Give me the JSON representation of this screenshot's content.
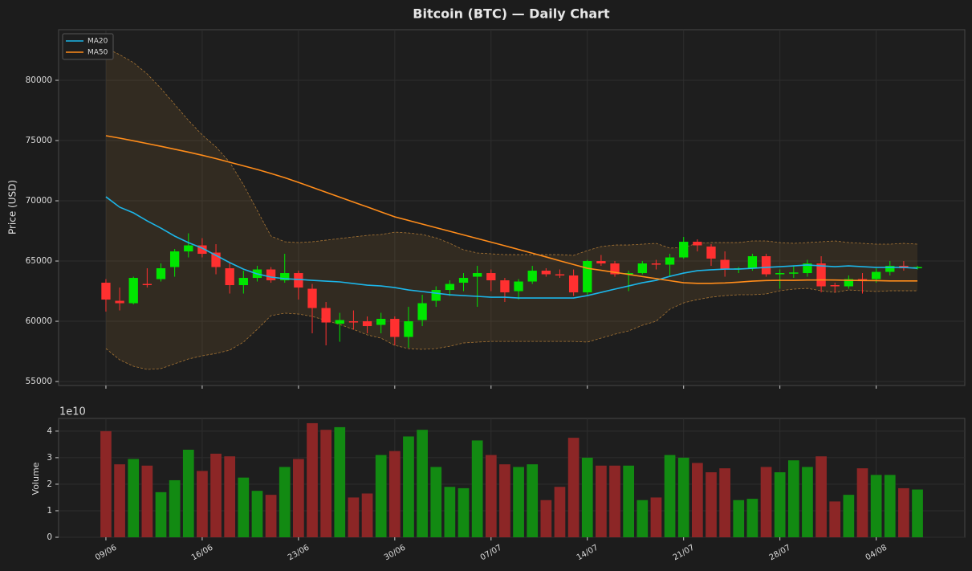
{
  "chart_data": [
    {
      "type": "candlestick",
      "title": "Bitcoin (BTC) — Daily Chart",
      "ylabel": "Price (USD)",
      "open": [
        63200,
        61700,
        61500,
        63100,
        63500,
        64500,
        65800,
        66300,
        65700,
        64400,
        63000,
        63600,
        64300,
        63400,
        64000,
        62700,
        61100,
        59800,
        60000,
        60000,
        59700,
        60200,
        58700,
        60100,
        61700,
        62600,
        63200,
        63700,
        64000,
        63400,
        62500,
        63300,
        64200,
        63900,
        63800,
        62400,
        65000,
        64800,
        63900,
        64000,
        64800,
        64700,
        65300,
        66600,
        66200,
        65100,
        64300,
        64400,
        65400,
        63900,
        63950,
        64000,
        64800,
        63000,
        62900,
        63500,
        63500,
        64100,
        64600,
        64400
      ],
      "high": [
        63500,
        62800,
        63700,
        64400,
        64800,
        66000,
        67300,
        66900,
        66400,
        64900,
        64200,
        64600,
        64500,
        65600,
        64200,
        63100,
        61600,
        60700,
        60900,
        60400,
        60700,
        60400,
        61200,
        62200,
        62900,
        63400,
        64000,
        64600,
        64300,
        63600,
        63500,
        64600,
        64400,
        64300,
        64300,
        65100,
        65500,
        65000,
        64200,
        65000,
        65100,
        65600,
        67000,
        66800,
        66400,
        65800,
        64500,
        65600,
        65600,
        64300,
        64600,
        65100,
        65400,
        63200,
        63800,
        64000,
        64400,
        65000,
        65000,
        64600
      ],
      "low": [
        60800,
        60900,
        61400,
        62800,
        63300,
        63700,
        65300,
        65300,
        63900,
        62300,
        62300,
        63300,
        63200,
        63200,
        61800,
        59000,
        58000,
        58300,
        59300,
        59000,
        59000,
        58000,
        57800,
        59600,
        61200,
        62100,
        62500,
        61200,
        62500,
        61600,
        61800,
        63100,
        63700,
        63600,
        62100,
        62200,
        64600,
        63700,
        62500,
        63900,
        64300,
        63700,
        65200,
        65800,
        64600,
        63700,
        64000,
        64200,
        63700,
        62700,
        63600,
        63700,
        62400,
        62400,
        62700,
        62300,
        63200,
        63800,
        64200,
        64300
      ],
      "close": [
        61800,
        61500,
        63600,
        63000,
        64400,
        65800,
        66300,
        65600,
        64500,
        63000,
        63600,
        64300,
        63400,
        64000,
        62800,
        61100,
        59900,
        60100,
        59900,
        59600,
        60200,
        58700,
        60000,
        61500,
        62600,
        63100,
        63600,
        64000,
        63400,
        62400,
        63300,
        64200,
        63900,
        63800,
        62400,
        65000,
        64800,
        63900,
        64000,
        64800,
        64700,
        65300,
        66600,
        66300,
        65200,
        64300,
        64400,
        65400,
        63900,
        64000,
        64050,
        64800,
        62900,
        62900,
        63500,
        63400,
        64100,
        64600,
        64400,
        64500
      ],
      "up_color": "#00e600",
      "down_color": "#ff3030",
      "series": [
        {
          "name": "MA20",
          "color": "#1cb5e8",
          "values": [
            70330,
            69470,
            69000,
            68330,
            67730,
            67070,
            66530,
            66070,
            65470,
            64870,
            64330,
            63930,
            63670,
            63530,
            63470,
            63400,
            63330,
            63270,
            63130,
            63000,
            62930,
            62800,
            62600,
            62470,
            62330,
            62200,
            62130,
            62070,
            62000,
            62000,
            61930,
            61930,
            61930,
            61930,
            61930,
            62130,
            62400,
            62670,
            62930,
            63200,
            63400,
            63730,
            64000,
            64200,
            64270,
            64330,
            64330,
            64400,
            64470,
            64530,
            64600,
            64670,
            64600,
            64530,
            64600,
            64530,
            64470,
            64470,
            64470,
            64400
          ]
        },
        {
          "name": "MA50",
          "color": "#ff8c1a",
          "values": [
            75400,
            75200,
            74980,
            74750,
            74520,
            74280,
            74040,
            73780,
            73500,
            73200,
            72900,
            72600,
            72270,
            71920,
            71530,
            71120,
            70710,
            70300,
            69890,
            69490,
            69080,
            68670,
            68370,
            68070,
            67770,
            67470,
            67170,
            66870,
            66570,
            66270,
            65960,
            65650,
            65340,
            65020,
            64710,
            64400,
            64230,
            64060,
            63890,
            63710,
            63540,
            63370,
            63200,
            63150,
            63150,
            63180,
            63250,
            63330,
            63380,
            63400,
            63400,
            63420,
            63430,
            63420,
            63400,
            63380,
            63370,
            63350,
            63350,
            63350
          ]
        }
      ],
      "band": {
        "color": "#c8893a",
        "upper": [
          82670,
          82130,
          81470,
          80530,
          79330,
          78000,
          76670,
          75470,
          74470,
          73200,
          71330,
          69200,
          67070,
          66600,
          66530,
          66600,
          66730,
          66870,
          67000,
          67130,
          67200,
          67400,
          67330,
          67200,
          66930,
          66470,
          65930,
          65670,
          65600,
          65530,
          65530,
          65530,
          65530,
          65530,
          65470,
          65870,
          66200,
          66330,
          66330,
          66400,
          66470,
          66070,
          66130,
          66470,
          66530,
          66530,
          66530,
          66670,
          66670,
          66530,
          66470,
          66530,
          66600,
          66670,
          66530,
          66470,
          66400,
          66400,
          66470,
          66400
        ],
        "lower": [
          57730,
          56800,
          56270,
          56000,
          56070,
          56470,
          56870,
          57130,
          57330,
          57600,
          58270,
          59330,
          60470,
          60670,
          60600,
          60400,
          60070,
          59730,
          59330,
          58870,
          58600,
          58000,
          57730,
          57670,
          57730,
          57930,
          58200,
          58270,
          58330,
          58330,
          58330,
          58330,
          58330,
          58330,
          58330,
          58270,
          58600,
          58930,
          59200,
          59670,
          60000,
          61000,
          61530,
          61800,
          62000,
          62130,
          62200,
          62200,
          62270,
          62530,
          62670,
          62730,
          62530,
          62400,
          62600,
          62530,
          62470,
          62530,
          62530,
          62530
        ]
      },
      "ylim": [
        54670,
        84200
      ],
      "yticks": [
        55000,
        60000,
        65000,
        70000,
        75000,
        80000
      ],
      "grid": true,
      "legend": "upper left"
    },
    {
      "type": "bar",
      "ylabel": "Volume",
      "offset_label": "1e10",
      "categories": [
        "09/06",
        null,
        null,
        null,
        null,
        null,
        null,
        "16/06",
        null,
        null,
        null,
        null,
        null,
        null,
        "23/06",
        null,
        null,
        null,
        null,
        null,
        null,
        "30/06",
        null,
        null,
        null,
        null,
        null,
        null,
        "07/07",
        null,
        null,
        null,
        null,
        null,
        null,
        "14/07",
        null,
        null,
        null,
        null,
        null,
        null,
        "21/07",
        null,
        null,
        null,
        null,
        null,
        null,
        "28/07",
        null,
        null,
        null,
        null,
        null,
        null,
        "04/08",
        null,
        null,
        null
      ],
      "values": [
        4.0,
        2.75,
        2.95,
        2.7,
        1.7,
        2.15,
        3.3,
        2.5,
        3.15,
        3.05,
        2.25,
        1.75,
        1.6,
        2.65,
        2.95,
        4.3,
        4.05,
        4.15,
        1.5,
        1.65,
        3.1,
        3.25,
        3.8,
        4.05,
        2.65,
        1.9,
        1.85,
        3.65,
        3.1,
        2.75,
        2.65,
        2.75,
        1.4,
        1.9,
        3.75,
        3.0,
        2.7,
        2.7,
        2.7,
        1.4,
        1.5,
        3.1,
        3.0,
        2.8,
        2.45,
        2.6,
        1.4,
        1.45,
        2.65,
        2.45,
        2.9,
        2.65,
        3.05,
        1.35,
        1.6,
        2.6,
        2.35,
        2.35,
        1.85,
        1.8
      ],
      "up_color": "#128a12",
      "down_color": "#8c2626",
      "ylim": [
        0,
        4.48
      ],
      "yticks": [
        0,
        1,
        2,
        3,
        4
      ],
      "grid": true
    }
  ]
}
